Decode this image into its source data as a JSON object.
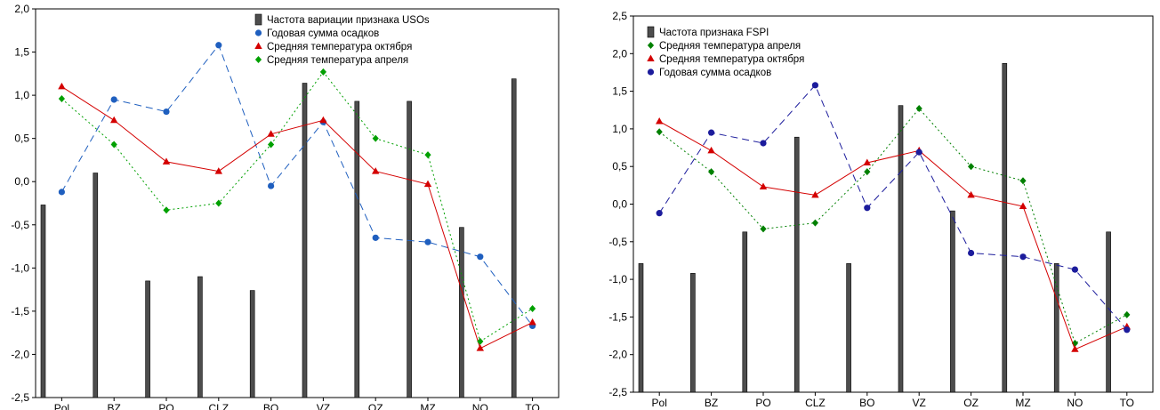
{
  "chart_data": [
    {
      "type": "bar",
      "categories": [
        "Pol",
        "BZ",
        "PO",
        "CLZ",
        "BO",
        "VZ",
        "OZ",
        "MZ",
        "NO",
        "TO"
      ],
      "ylim": [
        -2.5,
        2.0
      ],
      "yticks": [
        -2.5,
        -2.0,
        -1.5,
        -1.0,
        -0.5,
        0.0,
        0.5,
        1.0,
        1.5,
        2.0
      ],
      "ytick_labels": [
        "-2,5",
        "-2,0",
        "-1,5",
        "-1,0",
        "-0,5",
        "0,0",
        "0,5",
        "1,0",
        "1,5",
        "2,0"
      ],
      "legend_position": "top-right",
      "bars": {
        "name": "Частота вариации признака USOs",
        "values": [
          -0.27,
          0.1,
          -1.15,
          -1.1,
          -1.26,
          1.14,
          0.93,
          0.93,
          -0.53,
          1.19
        ],
        "color": "#4d4d4d"
      },
      "series": [
        {
          "name": "Годовая сумма осадков",
          "values": [
            -0.12,
            0.95,
            0.81,
            1.58,
            -0.05,
            0.69,
            -0.65,
            -0.7,
            -0.87,
            -1.67
          ],
          "color": "#1f5fbf",
          "marker": "circle",
          "dash": "8,5"
        },
        {
          "name": "Средняя температура октября",
          "values": [
            1.1,
            0.71,
            0.23,
            0.12,
            0.55,
            0.71,
            0.12,
            -0.03,
            -1.93,
            -1.63
          ],
          "color": "#d40000",
          "marker": "triangle",
          "dash": ""
        },
        {
          "name": "Средняя температура апреля",
          "values": [
            0.96,
            0.43,
            -0.33,
            -0.25,
            0.43,
            1.27,
            0.5,
            0.31,
            -1.85,
            -1.47
          ],
          "color": "#00a000",
          "marker": "diamond",
          "dash": "2,3"
        }
      ]
    },
    {
      "type": "bar",
      "categories": [
        "Pol",
        "BZ",
        "PO",
        "CLZ",
        "BO",
        "VZ",
        "OZ",
        "MZ",
        "NO",
        "TO"
      ],
      "ylim": [
        -2.5,
        2.5
      ],
      "yticks": [
        -2.5,
        -2.0,
        -1.5,
        -1.0,
        -0.5,
        0.0,
        0.5,
        1.0,
        1.5,
        2.0,
        2.5
      ],
      "ytick_labels": [
        "-2,5",
        "-2,0",
        "-1,5",
        "-1,0",
        "-0,5",
        "0,0",
        "0,5",
        "1,0",
        "1,5",
        "2,0",
        "2,5"
      ],
      "legend_position": "top-left",
      "bars": {
        "name": "Частота признака FSPI",
        "values": [
          -0.79,
          -0.92,
          -0.37,
          0.89,
          -0.79,
          1.31,
          -0.09,
          1.87,
          -0.79,
          -0.37
        ],
        "color": "#4d4d4d"
      },
      "series": [
        {
          "name": "Средняя температура апреля",
          "values": [
            0.96,
            0.43,
            -0.33,
            -0.25,
            0.43,
            1.27,
            0.5,
            0.31,
            -1.85,
            -1.47
          ],
          "color": "#008000",
          "marker": "diamond",
          "dash": "2,3"
        },
        {
          "name": "Средняя температура октября",
          "values": [
            1.1,
            0.71,
            0.23,
            0.12,
            0.55,
            0.71,
            0.12,
            -0.03,
            -1.93,
            -1.63
          ],
          "color": "#d40000",
          "marker": "triangle",
          "dash": ""
        },
        {
          "name": "Годовая сумма осадков",
          "values": [
            -0.12,
            0.95,
            0.81,
            1.58,
            -0.05,
            0.69,
            -0.65,
            -0.7,
            -0.87,
            -1.67
          ],
          "color": "#1c1c9c",
          "marker": "circle",
          "dash": "8,5"
        }
      ]
    }
  ]
}
